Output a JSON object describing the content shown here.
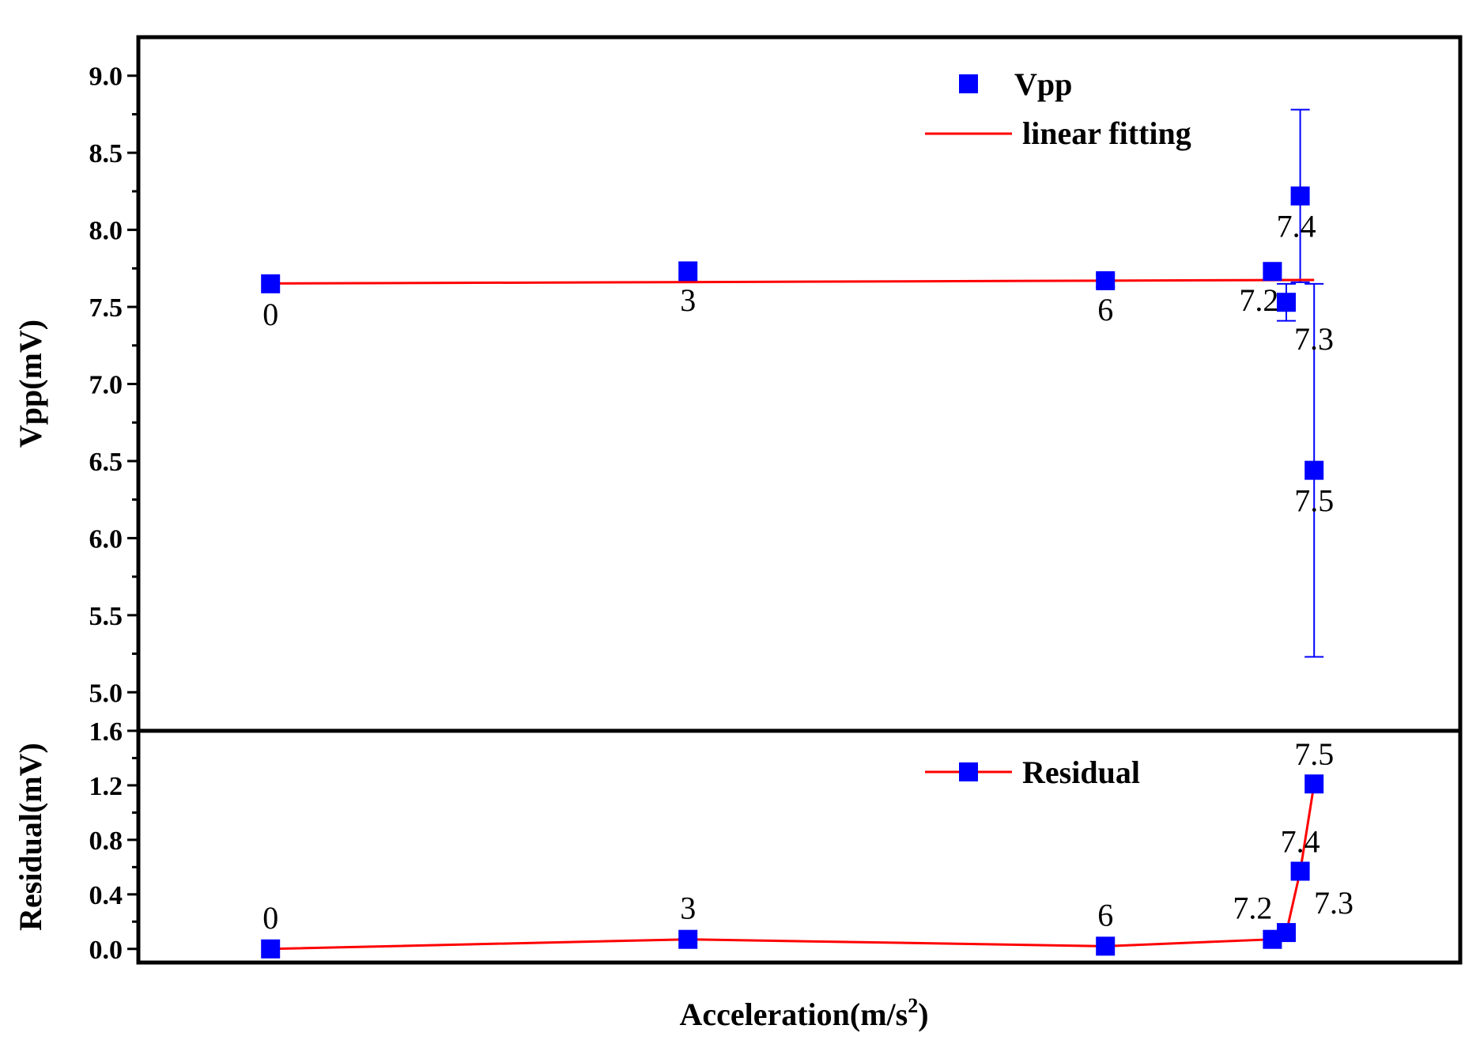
{
  "chart_data": {
    "type": "scatter",
    "xlabel_main": "Acceleration(m/s",
    "xlabel_sup": "2",
    "xlabel_close": ")",
    "xlim": [
      -0.95,
      8.55
    ],
    "colors": {
      "marker": "#0000ff",
      "fit": "#ff0000",
      "errorbar": "#0000ff",
      "axis": "#000000"
    },
    "top_panel": {
      "ylabel": "Vpp(mV)",
      "ylim": [
        4.75,
        9.25
      ],
      "yticks": [
        5.0,
        5.5,
        6.0,
        6.5,
        7.0,
        7.5,
        8.0,
        8.5,
        9.0
      ],
      "ytick_labels": [
        "5.0",
        "5.5",
        "6.0",
        "6.5",
        "7.0",
        "7.5",
        "8.0",
        "8.5",
        "9.0"
      ],
      "series": [
        {
          "name": "Vpp",
          "points": [
            {
              "x": 0,
              "y": 7.65,
              "err": 0.0,
              "label": "0"
            },
            {
              "x": 3,
              "y": 7.73,
              "err": 0.06,
              "label": "3"
            },
            {
              "x": 6,
              "y": 7.67,
              "err": 0.04,
              "label": "6"
            },
            {
              "x": 7.2,
              "y": 7.73,
              "err": 0.0,
              "label": "7.2"
            },
            {
              "x": 7.3,
              "y": 7.53,
              "err": 0.12,
              "label": "7.3"
            },
            {
              "x": 7.4,
              "y": 8.22,
              "err": 0.56,
              "label": "7.4"
            },
            {
              "x": 7.5,
              "y": 6.44,
              "err": 1.21,
              "label": "7.5"
            }
          ]
        }
      ],
      "fit": {
        "name": "linear fitting",
        "x": [
          0,
          7.5
        ],
        "y": [
          7.652,
          7.675
        ]
      },
      "legend": {
        "marker_label": "Vpp",
        "line_label": "linear fitting",
        "position": "top-right"
      }
    },
    "bottom_panel": {
      "ylabel": "Residual(mV)",
      "ylim": [
        -0.1,
        1.6
      ],
      "yticks": [
        0.0,
        0.4,
        0.8,
        1.2,
        1.6
      ],
      "ytick_labels": [
        "0.0",
        "0.4",
        "0.8",
        "1.2",
        "1.6"
      ],
      "series": [
        {
          "name": "Residual",
          "points": [
            {
              "x": 0,
              "y": 0.0,
              "label": "0"
            },
            {
              "x": 3,
              "y": 0.07,
              "label": "3"
            },
            {
              "x": 6,
              "y": 0.02,
              "label": "6"
            },
            {
              "x": 7.2,
              "y": 0.07,
              "label": "7.2"
            },
            {
              "x": 7.3,
              "y": 0.12,
              "label": "7.3"
            },
            {
              "x": 7.4,
              "y": 0.57,
              "label": "7.4"
            },
            {
              "x": 7.5,
              "y": 1.21,
              "label": "7.5"
            }
          ]
        }
      ],
      "legend": {
        "label": "Residual",
        "position": "top-right"
      }
    }
  }
}
